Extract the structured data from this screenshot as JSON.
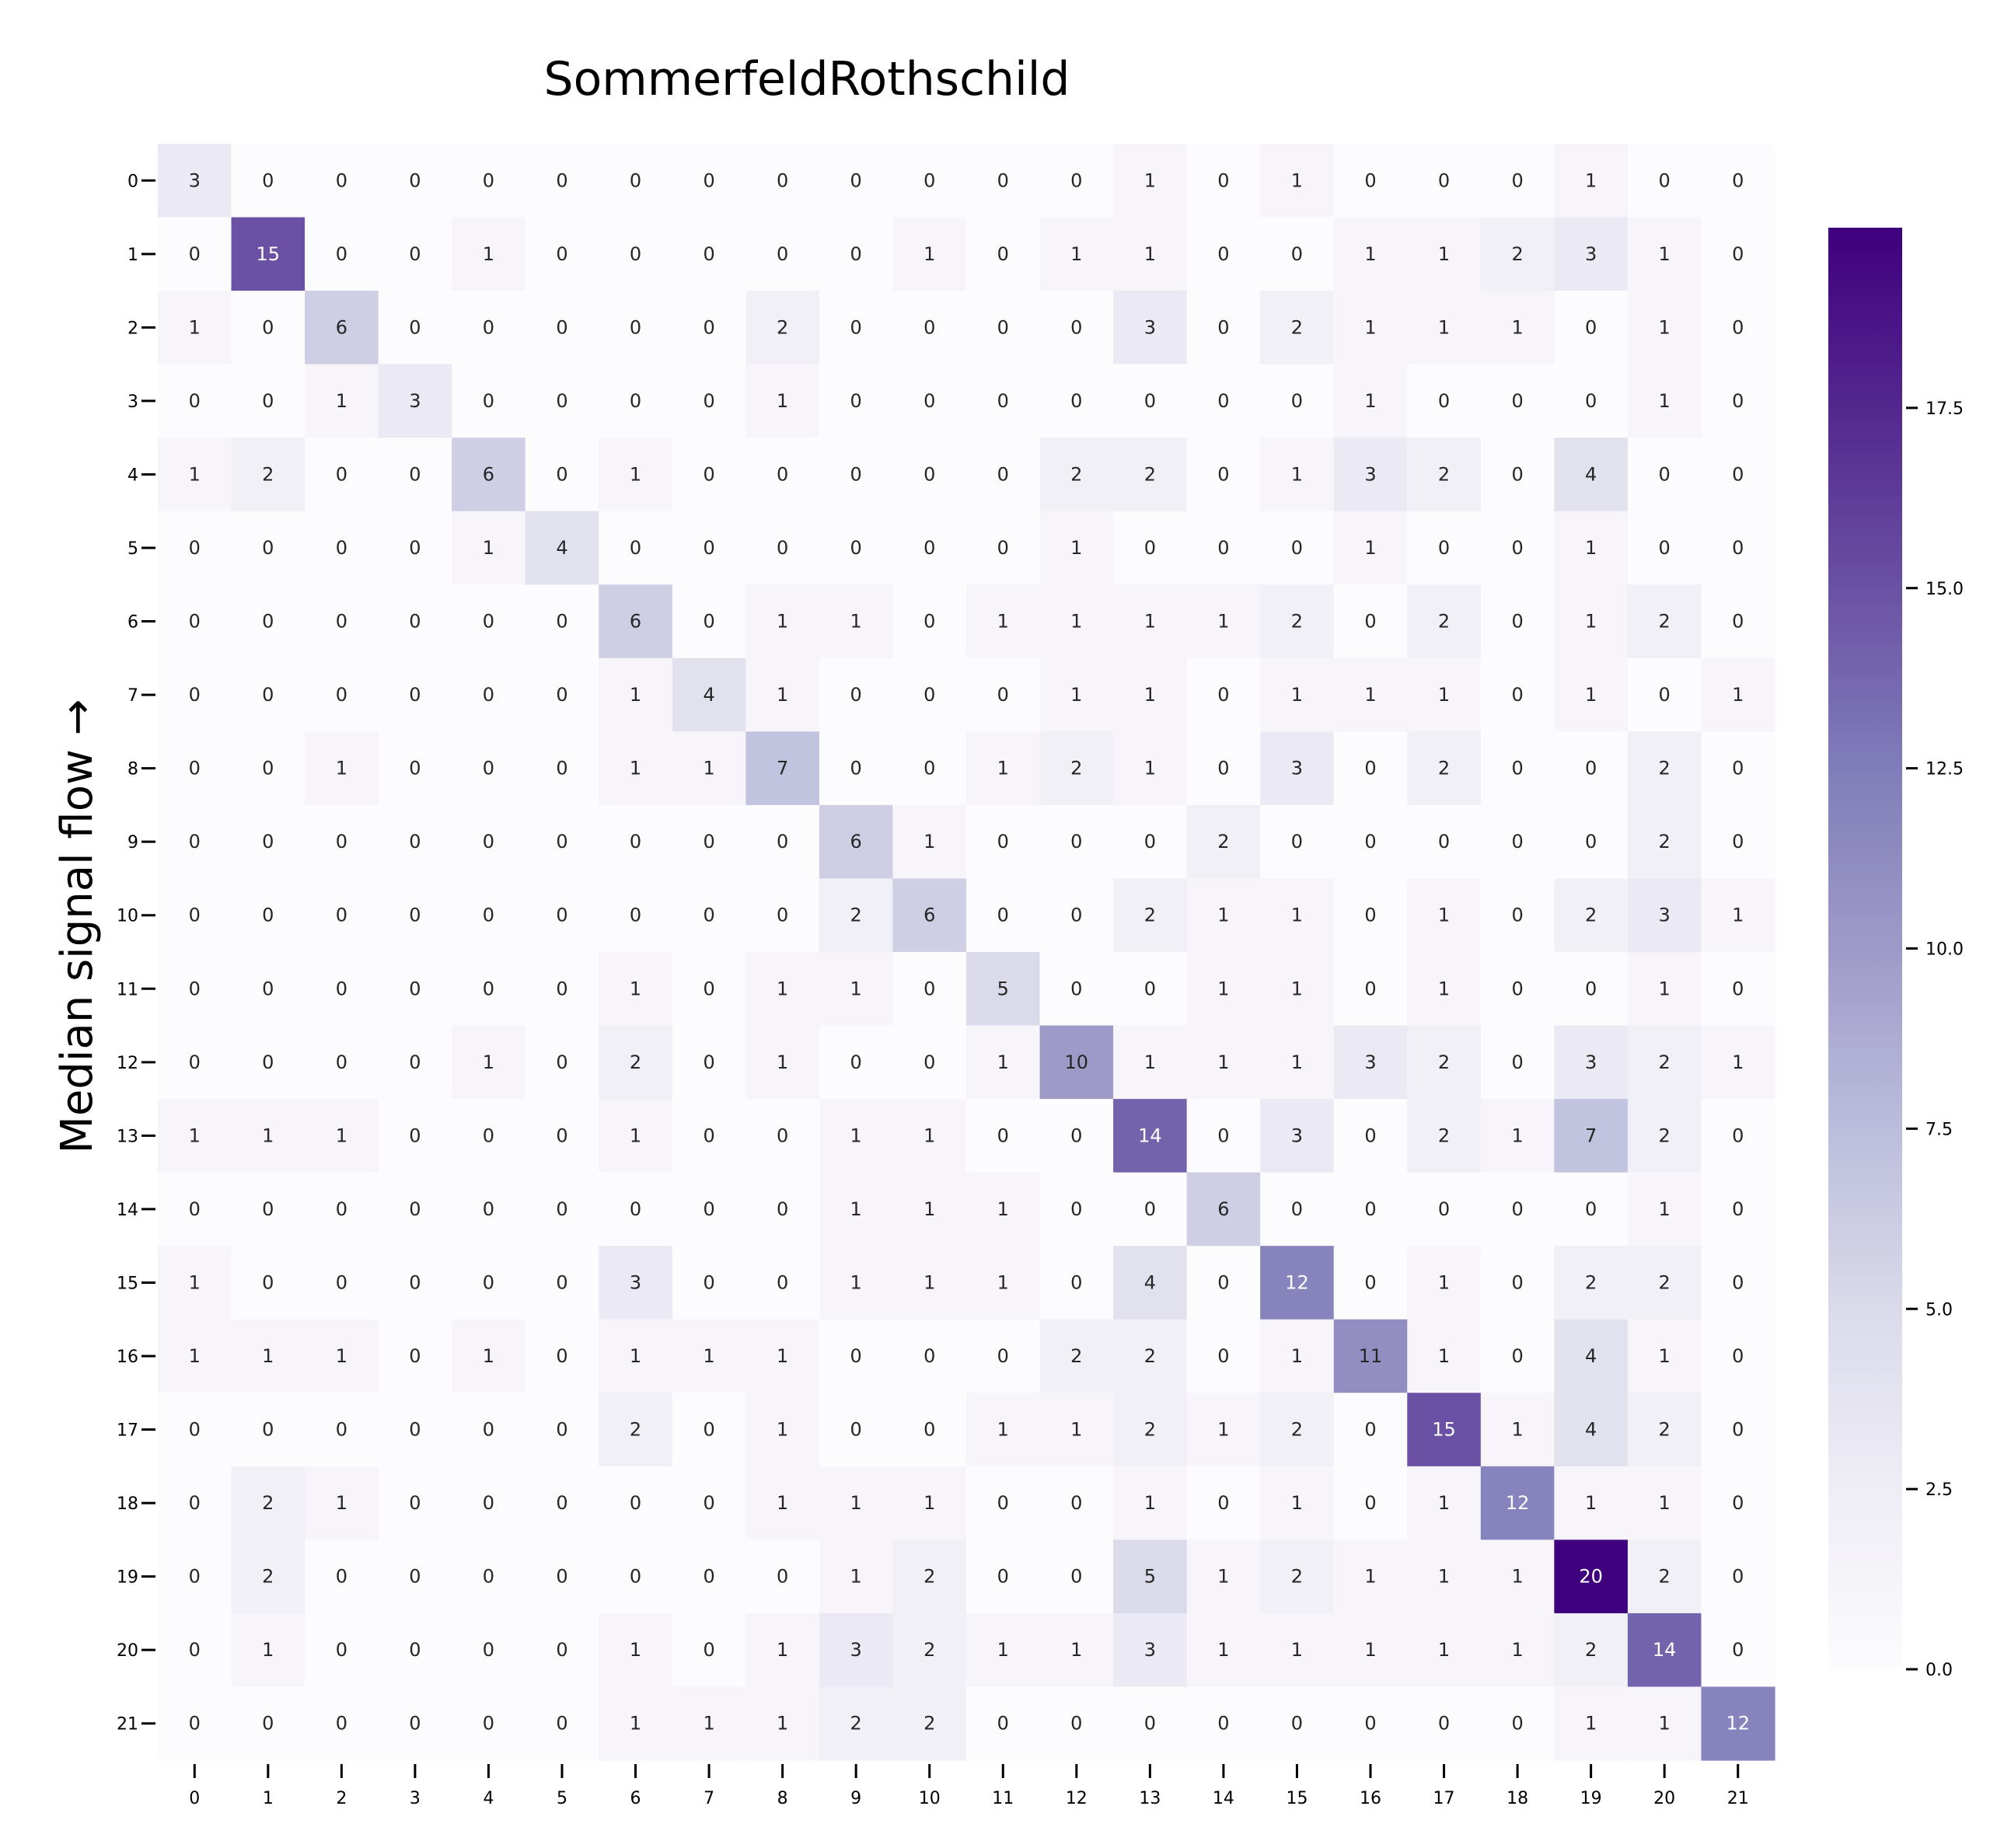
{
  "chart_data": {
    "type": "heatmap",
    "title": "SommerfeldRothschild",
    "xlabel": "",
    "ylabel": "Median signal flow →",
    "x_categories": [
      "0",
      "1",
      "2",
      "3",
      "4",
      "5",
      "6",
      "7",
      "8",
      "9",
      "10",
      "11",
      "12",
      "13",
      "14",
      "15",
      "16",
      "17",
      "18",
      "19",
      "20",
      "21"
    ],
    "y_categories": [
      "0",
      "1",
      "2",
      "3",
      "4",
      "5",
      "6",
      "7",
      "8",
      "9",
      "10",
      "11",
      "12",
      "13",
      "14",
      "15",
      "16",
      "17",
      "18",
      "19",
      "20",
      "21"
    ],
    "values": [
      [
        3,
        0,
        0,
        0,
        0,
        0,
        0,
        0,
        0,
        0,
        0,
        0,
        0,
        1,
        0,
        1,
        0,
        0,
        0,
        1,
        0,
        0
      ],
      [
        0,
        15,
        0,
        0,
        1,
        0,
        0,
        0,
        0,
        0,
        1,
        0,
        1,
        1,
        0,
        0,
        1,
        1,
        2,
        3,
        1,
        0
      ],
      [
        1,
        0,
        6,
        0,
        0,
        0,
        0,
        0,
        2,
        0,
        0,
        0,
        0,
        3,
        0,
        2,
        1,
        1,
        1,
        0,
        1,
        0
      ],
      [
        0,
        0,
        1,
        3,
        0,
        0,
        0,
        0,
        1,
        0,
        0,
        0,
        0,
        0,
        0,
        0,
        1,
        0,
        0,
        0,
        1,
        0
      ],
      [
        1,
        2,
        0,
        0,
        6,
        0,
        1,
        0,
        0,
        0,
        0,
        0,
        2,
        2,
        0,
        1,
        3,
        2,
        0,
        4,
        0,
        0
      ],
      [
        0,
        0,
        0,
        0,
        1,
        4,
        0,
        0,
        0,
        0,
        0,
        0,
        1,
        0,
        0,
        0,
        1,
        0,
        0,
        1,
        0,
        0
      ],
      [
        0,
        0,
        0,
        0,
        0,
        0,
        6,
        0,
        1,
        1,
        0,
        1,
        1,
        1,
        1,
        2,
        0,
        2,
        0,
        1,
        2,
        0
      ],
      [
        0,
        0,
        0,
        0,
        0,
        0,
        1,
        4,
        1,
        0,
        0,
        0,
        1,
        1,
        0,
        1,
        1,
        1,
        0,
        1,
        0,
        1
      ],
      [
        0,
        0,
        1,
        0,
        0,
        0,
        1,
        1,
        7,
        0,
        0,
        1,
        2,
        1,
        0,
        3,
        0,
        2,
        0,
        0,
        2,
        0
      ],
      [
        0,
        0,
        0,
        0,
        0,
        0,
        0,
        0,
        0,
        6,
        1,
        0,
        0,
        0,
        2,
        0,
        0,
        0,
        0,
        0,
        2,
        0
      ],
      [
        0,
        0,
        0,
        0,
        0,
        0,
        0,
        0,
        0,
        2,
        6,
        0,
        0,
        2,
        1,
        1,
        0,
        1,
        0,
        2,
        3,
        1
      ],
      [
        0,
        0,
        0,
        0,
        0,
        0,
        1,
        0,
        1,
        1,
        0,
        5,
        0,
        0,
        1,
        1,
        0,
        1,
        0,
        0,
        1,
        0
      ],
      [
        0,
        0,
        0,
        0,
        1,
        0,
        2,
        0,
        1,
        0,
        0,
        1,
        10,
        1,
        1,
        1,
        3,
        2,
        0,
        3,
        2,
        1
      ],
      [
        1,
        1,
        1,
        0,
        0,
        0,
        1,
        0,
        0,
        1,
        1,
        0,
        0,
        14,
        0,
        3,
        0,
        2,
        1,
        7,
        2,
        0
      ],
      [
        0,
        0,
        0,
        0,
        0,
        0,
        0,
        0,
        0,
        1,
        1,
        1,
        0,
        0,
        6,
        0,
        0,
        0,
        0,
        0,
        1,
        0
      ],
      [
        1,
        0,
        0,
        0,
        0,
        0,
        3,
        0,
        0,
        1,
        1,
        1,
        0,
        4,
        0,
        12,
        0,
        1,
        0,
        2,
        2,
        0
      ],
      [
        1,
        1,
        1,
        0,
        1,
        0,
        1,
        1,
        1,
        0,
        0,
        0,
        2,
        2,
        0,
        1,
        11,
        1,
        0,
        4,
        1,
        0
      ],
      [
        0,
        0,
        0,
        0,
        0,
        0,
        2,
        0,
        1,
        0,
        0,
        1,
        1,
        2,
        1,
        2,
        0,
        15,
        1,
        4,
        2,
        0
      ],
      [
        0,
        2,
        1,
        0,
        0,
        0,
        0,
        0,
        1,
        1,
        1,
        0,
        0,
        1,
        0,
        1,
        0,
        1,
        12,
        1,
        1,
        0
      ],
      [
        0,
        2,
        0,
        0,
        0,
        0,
        0,
        0,
        0,
        1,
        2,
        0,
        0,
        5,
        1,
        2,
        1,
        1,
        1,
        20,
        2,
        0
      ],
      [
        0,
        1,
        0,
        0,
        0,
        0,
        1,
        0,
        1,
        3,
        2,
        1,
        1,
        3,
        1,
        1,
        1,
        1,
        1,
        2,
        14,
        0
      ],
      [
        0,
        0,
        0,
        0,
        0,
        0,
        1,
        1,
        1,
        2,
        2,
        0,
        0,
        0,
        0,
        0,
        0,
        0,
        0,
        1,
        1,
        12
      ]
    ],
    "colormap": "Purples",
    "colorbar": {
      "range": [
        0,
        20
      ],
      "ticks": [
        0.0,
        2.5,
        5.0,
        7.5,
        10.0,
        12.5,
        15.0,
        17.5
      ],
      "tick_labels": [
        "0.0",
        "2.5",
        "5.0",
        "7.5",
        "10.0",
        "12.5",
        "15.0",
        "17.5"
      ]
    },
    "colors": {
      "low": "#fcfbfd",
      "high": "#3f007d",
      "text_dark": "#262626",
      "text_light": "#ffffff"
    },
    "grid": false,
    "legend": "colorbar-right"
  }
}
